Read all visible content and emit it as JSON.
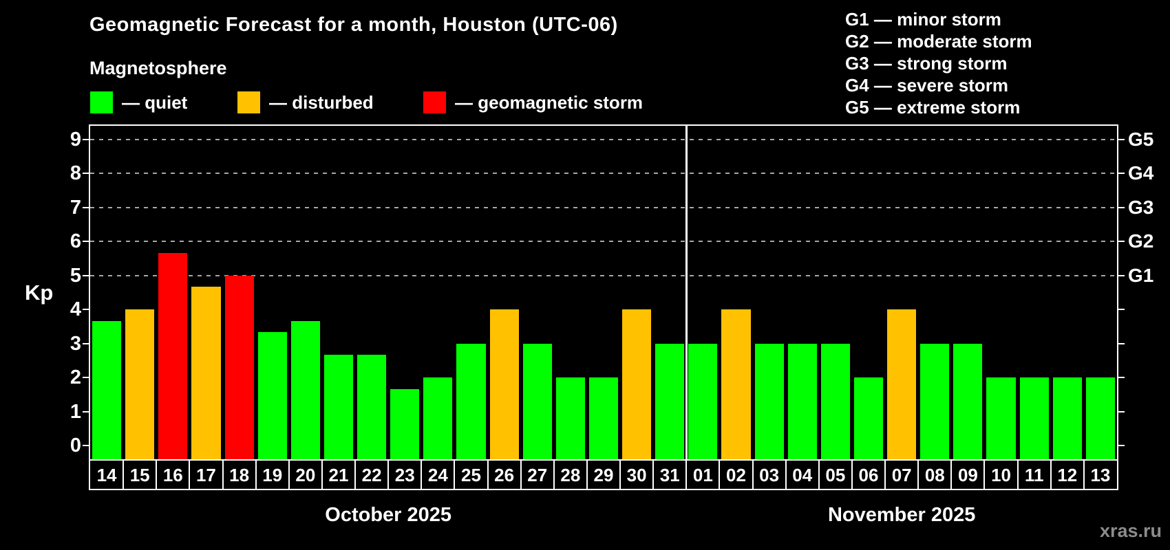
{
  "header": {
    "title": "Geomagnetic Forecast for a month, Houston (UTC-06)",
    "subtitle": "Magnetosphere",
    "legend": [
      {
        "label": "— quiet",
        "status": "quiet"
      },
      {
        "label": "— disturbed",
        "status": "disturbed"
      },
      {
        "label": "— geomagnetic storm",
        "status": "storm"
      }
    ],
    "g_scale_legend": [
      "G1 — minor storm",
      "G2 — moderate storm",
      "G3 — strong storm",
      "G4 — severe storm",
      "G5 — extreme storm"
    ]
  },
  "colors": {
    "quiet": "#00ff00",
    "disturbed": "#ffc100",
    "storm": "#ff0000",
    "axis": "#ffffff",
    "grid": "#a8a8a8",
    "background": "#000000",
    "watermark": "#8c8c8c"
  },
  "watermark": "xras.ru",
  "chart_data": {
    "type": "bar",
    "title": "Geomagnetic Forecast for a month, Houston (UTC-06)",
    "ylabel": "Kp",
    "ylim": [
      -0.4,
      9.4
    ],
    "y_ticks": [
      0,
      1,
      2,
      3,
      4,
      5,
      6,
      7,
      8,
      9
    ],
    "gridlines_at": [
      5,
      6,
      7,
      8,
      9
    ],
    "legend_position": "top-left",
    "right_axis": [
      {
        "kp": 5,
        "label": "G1"
      },
      {
        "kp": 6,
        "label": "G2"
      },
      {
        "kp": 7,
        "label": "G3"
      },
      {
        "kp": 8,
        "label": "G4"
      },
      {
        "kp": 9,
        "label": "G5"
      }
    ],
    "months": [
      {
        "label": "October 2025",
        "days": [
          {
            "day": "14",
            "kp": 3.67,
            "status": "quiet"
          },
          {
            "day": "15",
            "kp": 4.0,
            "status": "disturbed"
          },
          {
            "day": "16",
            "kp": 5.67,
            "status": "storm"
          },
          {
            "day": "17",
            "kp": 4.67,
            "status": "disturbed"
          },
          {
            "day": "18",
            "kp": 5.0,
            "status": "storm"
          },
          {
            "day": "19",
            "kp": 3.33,
            "status": "quiet"
          },
          {
            "day": "20",
            "kp": 3.67,
            "status": "quiet"
          },
          {
            "day": "21",
            "kp": 2.67,
            "status": "quiet"
          },
          {
            "day": "22",
            "kp": 2.67,
            "status": "quiet"
          },
          {
            "day": "23",
            "kp": 1.67,
            "status": "quiet"
          },
          {
            "day": "24",
            "kp": 2.0,
            "status": "quiet"
          },
          {
            "day": "25",
            "kp": 3.0,
            "status": "quiet"
          },
          {
            "day": "26",
            "kp": 4.0,
            "status": "disturbed"
          },
          {
            "day": "27",
            "kp": 3.0,
            "status": "quiet"
          },
          {
            "day": "28",
            "kp": 2.0,
            "status": "quiet"
          },
          {
            "day": "29",
            "kp": 2.0,
            "status": "quiet"
          },
          {
            "day": "30",
            "kp": 4.0,
            "status": "disturbed"
          },
          {
            "day": "31",
            "kp": 3.0,
            "status": "quiet"
          }
        ]
      },
      {
        "label": "November 2025",
        "days": [
          {
            "day": "01",
            "kp": 3.0,
            "status": "quiet"
          },
          {
            "day": "02",
            "kp": 4.0,
            "status": "disturbed"
          },
          {
            "day": "03",
            "kp": 3.0,
            "status": "quiet"
          },
          {
            "day": "04",
            "kp": 3.0,
            "status": "quiet"
          },
          {
            "day": "05",
            "kp": 3.0,
            "status": "quiet"
          },
          {
            "day": "06",
            "kp": 2.0,
            "status": "quiet"
          },
          {
            "day": "07",
            "kp": 4.0,
            "status": "disturbed"
          },
          {
            "day": "08",
            "kp": 3.0,
            "status": "quiet"
          },
          {
            "day": "09",
            "kp": 3.0,
            "status": "quiet"
          },
          {
            "day": "10",
            "kp": 2.0,
            "status": "quiet"
          },
          {
            "day": "11",
            "kp": 2.0,
            "status": "quiet"
          },
          {
            "day": "12",
            "kp": 2.0,
            "status": "quiet"
          },
          {
            "day": "13",
            "kp": 2.0,
            "status": "quiet"
          }
        ]
      }
    ]
  }
}
